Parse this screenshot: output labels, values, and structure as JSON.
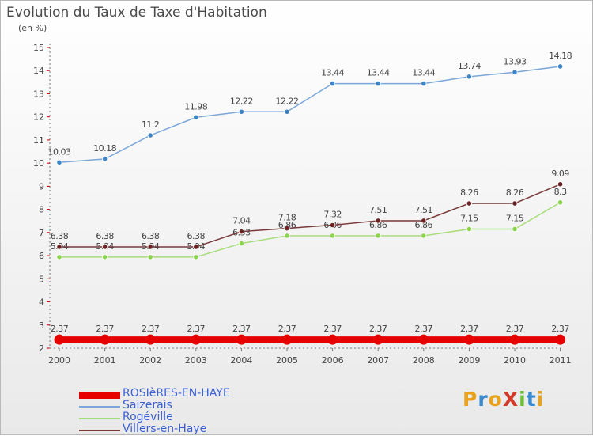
{
  "chart_data": {
    "type": "line",
    "title": "Evolution du Taux de Taxe d'Habitation",
    "unit_label": "(en %)",
    "categories": [
      "2000",
      "2001",
      "2002",
      "2003",
      "2004",
      "2005",
      "2006",
      "2007",
      "2008",
      "2009",
      "2010",
      "2011"
    ],
    "ylim": [
      2,
      15
    ],
    "yticks": [
      2,
      3,
      4,
      5,
      6,
      7,
      8,
      9,
      10,
      11,
      12,
      13,
      14,
      15
    ],
    "grid": false,
    "legend_position": "bottom-left",
    "series": [
      {
        "name": "ROSIèRES-EN-HAYE",
        "color": "#e60000",
        "marker_color": "#e60000",
        "values": [
          2.37,
          2.37,
          2.37,
          2.37,
          2.37,
          2.37,
          2.37,
          2.37,
          2.37,
          2.37,
          2.37,
          2.37
        ],
        "labels": [
          "2.37",
          "2.37",
          "2.37",
          "2.37",
          "2.37",
          "2.37",
          "2.37",
          "2.37",
          "2.37",
          "2.37",
          "2.37",
          "2.37"
        ]
      },
      {
        "name": "Saizerais",
        "color": "#7aa7d8",
        "marker_color": "#3d85c6",
        "values": [
          10.03,
          10.18,
          11.2,
          11.98,
          12.22,
          12.22,
          13.44,
          13.44,
          13.44,
          13.74,
          13.93,
          14.18
        ],
        "labels": [
          "10.03",
          "10.18",
          "11.2",
          "11.98",
          "12.22",
          "12.22",
          "13.44",
          "13.44",
          "13.44",
          "13.74",
          "13.93",
          "14.18"
        ]
      },
      {
        "name": "Rogéville",
        "color": "#a8dc7a",
        "marker_color": "#8dd34e",
        "values": [
          5.94,
          5.94,
          5.94,
          5.94,
          6.53,
          6.86,
          6.86,
          6.86,
          6.86,
          7.15,
          7.15,
          8.3
        ],
        "labels": [
          "5.94",
          "5.94",
          "5.94",
          "5.94",
          "6.53",
          "6.86",
          "6.86",
          "6.86",
          "6.86",
          "7.15",
          "7.15",
          "8.3"
        ]
      },
      {
        "name": "Villers-en-Haye",
        "color": "#7a3a3a",
        "marker_color": "#6b2222",
        "values": [
          6.38,
          6.38,
          6.38,
          6.38,
          7.04,
          7.18,
          7.32,
          7.51,
          7.51,
          8.26,
          8.26,
          9.09
        ],
        "labels": [
          "6.38",
          "6.38",
          "6.38",
          "6.38",
          "7.04",
          "7.18",
          "7.32",
          "7.51",
          "7.51",
          "8.26",
          "8.26",
          "9.09"
        ]
      }
    ]
  },
  "logo": {
    "text": "ProXiti",
    "letters": [
      {
        "ch": "P",
        "color": "#e8a21c"
      },
      {
        "ch": "r",
        "color": "#3a8ad0"
      },
      {
        "ch": "o",
        "color": "#e8a21c"
      },
      {
        "ch": "X",
        "color": "#d23a2a"
      },
      {
        "ch": "i",
        "color": "#6cbf3a"
      },
      {
        "ch": "t",
        "color": "#3a8ad0"
      },
      {
        "ch": "i",
        "color": "#e8a21c"
      }
    ]
  }
}
